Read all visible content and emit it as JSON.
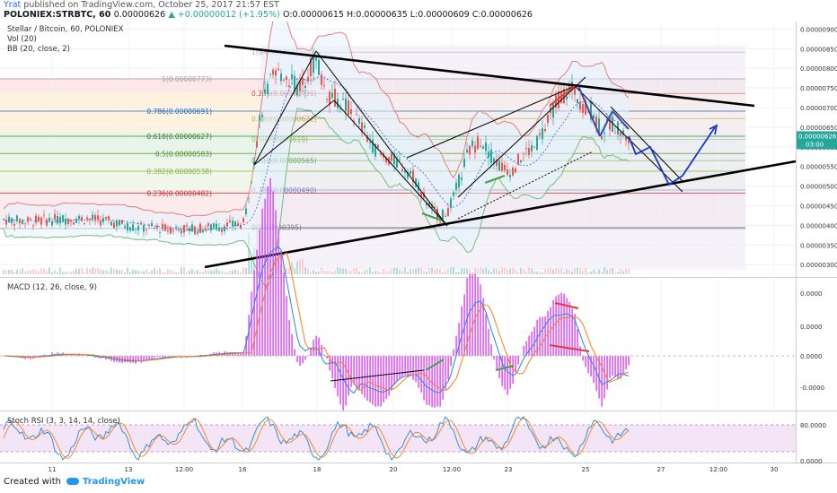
{
  "header": {
    "user": "Yrat",
    "published_text": "published on TradingView.com, October 25, 2017 21:57 EST",
    "symbol_line": "POLONIEX:STRBTC, 60",
    "last_value": "0.00000626",
    "change": "▲ +0.00000012 (+1.95%)",
    "ohlc": "O:0.00000615 H:0.00000635 L:0.00000609 C:0.00000626"
  },
  "legend": {
    "title": "Stellar / Bitcoin, 60, POLONIEX",
    "vol": "Vol (20)",
    "bb": "BB (20, close, 2)",
    "macd": "MACD (12, 26, close, 9)",
    "stoch": "Stoch RSI (3, 3, 14, 14, close)"
  },
  "footer": {
    "created_with": "Created with",
    "brand": "TradingView"
  },
  "colors": {
    "up_candle": "#26a69a",
    "down_candle": "#ef5350",
    "bb_band": "#e57373",
    "bb_basis": "#2962ff",
    "macd_line": "#1e88e5",
    "signal_line": "#ff7f0e",
    "histogram": "#e040fb",
    "trendline": "#000000",
    "projection": "#1a34d6"
  },
  "chart_data": [
    {
      "type": "candlestick",
      "title": "Stellar / Bitcoin, 60, POLONIEX",
      "y_ticks": [
        "0.00000900",
        "0.00000850",
        "0.00000800",
        "0.00000750",
        "0.00000700",
        "0.00000650",
        "0.00000600",
        "0.00000550",
        "0.00000500",
        "0.00000450",
        "0.00000400",
        "0.00000350",
        "0.00000300"
      ],
      "ylim": [
        2.8e-06,
        9.1e-06
      ],
      "x_ticks": [
        "11",
        "13",
        "12:00",
        "16",
        "18",
        "20",
        "12:00",
        "23",
        "25",
        "27",
        "12:00",
        "30"
      ],
      "last_price_label": "0.00000626",
      "last_price_sublabel": "03:00",
      "fib_levels_1": [
        {
          "label": "1(0.00000773)",
          "value": 7.73e-06
        },
        {
          "label": "0.786(0.00000691)",
          "value": 6.91e-06
        },
        {
          "label": "0.618(0.00000627)",
          "value": 6.27e-06
        },
        {
          "label": "0.5(0.00000583)",
          "value": 5.83e-06
        },
        {
          "label": "0.382(0.00000538)",
          "value": 5.38e-06
        },
        {
          "label": "0.236(0.00000482)",
          "value": 4.82e-06
        },
        {
          "label": "0(0.00000392)",
          "value": 3.92e-06
        }
      ],
      "fib_levels_2": [
        {
          "label": "1(0.00000841)",
          "value": 8.41e-06
        },
        {
          "label": "0.236(0.00000736)",
          "value": 7.36e-06
        },
        {
          "label": "0.382(0.00000672)",
          "value": 6.72e-06
        },
        {
          "label": "0.5(0.00000619)",
          "value": 6.19e-06
        },
        {
          "label": "0.618(0.00000565)",
          "value": 5.65e-06
        },
        {
          "label": "0.786(0.00000490)",
          "value": 4.9e-06
        },
        {
          "label": "0(0.00000395)",
          "value": 3.95e-06
        }
      ]
    },
    {
      "type": "line",
      "title": "MACD (12, 26, close, 9)",
      "y_ticks": [
        "0.0000",
        "0.0000",
        "0.0000",
        "-0.0000"
      ],
      "series": [
        {
          "name": "MACD"
        },
        {
          "name": "Signal"
        },
        {
          "name": "Histogram"
        }
      ]
    },
    {
      "type": "line",
      "title": "Stoch RSI (3, 3, 14, 14, close)",
      "y_ticks": [
        "80.0000",
        "0.0000"
      ],
      "ylim": [
        0,
        100
      ],
      "upper_band": 80,
      "lower_band": 20
    }
  ]
}
